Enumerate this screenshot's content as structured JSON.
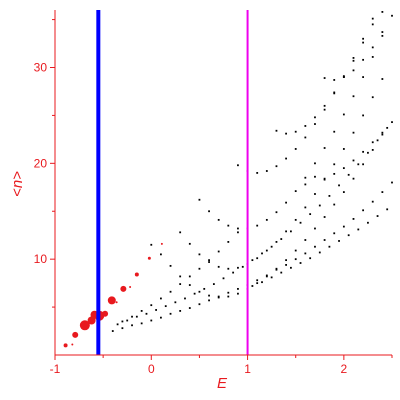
{
  "chart_data": {
    "type": "scatter",
    "title": "",
    "xlabel": "E",
    "ylabel": "<n>",
    "xlim": [
      -1.0,
      2.5
    ],
    "ylim": [
      0.0,
      36.0
    ],
    "x_ticks": [
      -1,
      0,
      1,
      2
    ],
    "y_ticks": [
      10,
      20,
      30
    ],
    "grid": false,
    "colors": {
      "axes": "#e8191e",
      "red_points": "#e8191e",
      "black_points": "#000000",
      "blue_line": "#0000ff",
      "magenta_line": "#ee00ee"
    },
    "vertical_lines": [
      {
        "x": -0.55,
        "color": "#0000ff"
      },
      {
        "x": 1.0,
        "color": "#ee00ee"
      }
    ],
    "red_series": {
      "points": [
        {
          "x": -0.89,
          "y": 1.0,
          "size": 2
        },
        {
          "x": -0.79,
          "y": 2.1,
          "size": 3
        },
        {
          "x": -0.69,
          "y": 3.1,
          "size": 5
        },
        {
          "x": -0.62,
          "y": 3.6,
          "size": 4
        },
        {
          "x": -0.59,
          "y": 4.2,
          "size": 4
        },
        {
          "x": -0.54,
          "y": 4.1,
          "size": 5
        },
        {
          "x": -0.48,
          "y": 4.3,
          "size": 3
        },
        {
          "x": -0.41,
          "y": 5.7,
          "size": 4
        },
        {
          "x": -0.29,
          "y": 6.9,
          "size": 3
        },
        {
          "x": -0.15,
          "y": 8.4,
          "size": 2
        },
        {
          "x": -0.02,
          "y": 10.1,
          "size": 1.5
        },
        {
          "x": 0.11,
          "y": 11.6,
          "size": 1
        },
        {
          "x": -0.82,
          "y": 1.1,
          "size": 1
        },
        {
          "x": -0.36,
          "y": 5.5,
          "size": 1
        },
        {
          "x": -0.22,
          "y": 7.1,
          "size": 1
        }
      ]
    },
    "black_series": {
      "points": [
        [
          -0.4,
          2.5
        ],
        [
          -0.3,
          2.8
        ],
        [
          -0.2,
          3.1
        ],
        [
          -0.1,
          3.3
        ],
        [
          0.0,
          3.6
        ],
        [
          0.1,
          3.9
        ],
        [
          0.2,
          4.3
        ],
        [
          0.3,
          4.6
        ],
        [
          0.4,
          4.9
        ],
        [
          0.5,
          5.3
        ],
        [
          0.6,
          5.7
        ],
        [
          0.7,
          6.1
        ],
        [
          0.8,
          6.5
        ],
        [
          0.9,
          6.9
        ],
        [
          1.0,
          7.3
        ],
        [
          1.1,
          7.8
        ],
        [
          1.2,
          8.3
        ],
        [
          1.3,
          8.9
        ],
        [
          1.4,
          9.4
        ],
        [
          1.5,
          10.0
        ],
        [
          1.6,
          10.6
        ],
        [
          1.7,
          11.3
        ],
        [
          1.8,
          12.0
        ],
        [
          1.9,
          12.7
        ],
        [
          2.0,
          13.4
        ],
        [
          2.1,
          14.2
        ],
        [
          2.2,
          15.1
        ],
        [
          2.3,
          16.0
        ],
        [
          2.4,
          17.0
        ],
        [
          2.5,
          18.0
        ],
        [
          -0.35,
          3.2
        ],
        [
          -0.25,
          3.6
        ],
        [
          -0.15,
          4.0
        ],
        [
          -0.05,
          4.3
        ],
        [
          0.05,
          4.7
        ],
        [
          0.15,
          5.1
        ],
        [
          0.25,
          5.5
        ],
        [
          0.35,
          5.9
        ],
        [
          0.45,
          6.4
        ],
        [
          0.55,
          6.9
        ],
        [
          0.65,
          7.4
        ],
        [
          0.75,
          8.0
        ],
        [
          0.85,
          8.6
        ],
        [
          0.95,
          9.2
        ],
        [
          1.05,
          9.9
        ],
        [
          1.15,
          10.6
        ],
        [
          1.25,
          11.3
        ],
        [
          1.35,
          12.1
        ],
        [
          1.45,
          12.9
        ],
        [
          1.55,
          13.8
        ],
        [
          1.65,
          14.7
        ],
        [
          1.75,
          15.6
        ],
        [
          1.85,
          16.6
        ],
        [
          1.95,
          17.7
        ],
        [
          2.05,
          18.8
        ],
        [
          2.15,
          19.9
        ],
        [
          2.25,
          21.1
        ],
        [
          2.35,
          22.4
        ],
        [
          2.45,
          23.7
        ],
        [
          0.0,
          11.5
        ],
        [
          0.1,
          10.5
        ],
        [
          0.2,
          9.3
        ],
        [
          0.3,
          8.2
        ],
        [
          0.4,
          7.3
        ],
        [
          0.5,
          6.6
        ],
        [
          0.6,
          6.2
        ],
        [
          0.7,
          6.0
        ],
        [
          0.8,
          6.1
        ],
        [
          0.9,
          6.4
        ],
        [
          1.0,
          6.9
        ],
        [
          1.1,
          7.5
        ],
        [
          1.2,
          8.2
        ],
        [
          1.3,
          9.0
        ],
        [
          1.4,
          9.9
        ],
        [
          1.5,
          10.9
        ],
        [
          1.6,
          12.0
        ],
        [
          1.7,
          13.2
        ],
        [
          1.8,
          14.4
        ],
        [
          1.9,
          15.7
        ],
        [
          2.0,
          17.0
        ],
        [
          2.1,
          18.4
        ],
        [
          2.2,
          19.9
        ],
        [
          2.3,
          21.4
        ],
        [
          2.4,
          23.0
        ],
        [
          0.3,
          12.8
        ],
        [
          0.4,
          11.6
        ],
        [
          0.5,
          10.5
        ],
        [
          0.6,
          9.7
        ],
        [
          0.7,
          9.2
        ],
        [
          0.8,
          9.0
        ],
        [
          0.9,
          9.1
        ],
        [
          1.0,
          9.5
        ],
        [
          1.1,
          10.1
        ],
        [
          1.2,
          10.9
        ],
        [
          1.3,
          11.8
        ],
        [
          1.4,
          12.9
        ],
        [
          1.5,
          14.1
        ],
        [
          1.6,
          15.4
        ],
        [
          1.7,
          16.8
        ],
        [
          1.8,
          18.3
        ],
        [
          1.9,
          19.9
        ],
        [
          2.0,
          21.5
        ],
        [
          2.1,
          23.2
        ],
        [
          2.2,
          25.0
        ],
        [
          2.3,
          26.9
        ],
        [
          2.4,
          28.8
        ],
        [
          0.5,
          16.2
        ],
        [
          0.6,
          15.0
        ],
        [
          0.7,
          14.1
        ],
        [
          0.8,
          13.5
        ],
        [
          0.9,
          13.2
        ],
        [
          1.0,
          13.2
        ],
        [
          1.1,
          13.5
        ],
        [
          1.2,
          14.1
        ],
        [
          1.3,
          14.9
        ],
        [
          1.4,
          15.9
        ],
        [
          1.5,
          17.1
        ],
        [
          1.6,
          18.5
        ],
        [
          1.7,
          20.0
        ],
        [
          1.8,
          21.6
        ],
        [
          1.9,
          23.3
        ],
        [
          2.0,
          25.1
        ],
        [
          2.1,
          27.0
        ],
        [
          2.2,
          29.0
        ],
        [
          2.3,
          31.1
        ],
        [
          2.4,
          33.3
        ],
        [
          0.9,
          19.8
        ],
        [
          1.0,
          19.2
        ],
        [
          1.1,
          19.0
        ],
        [
          1.2,
          19.2
        ],
        [
          1.3,
          19.7
        ],
        [
          1.4,
          20.5
        ],
        [
          1.5,
          21.5
        ],
        [
          1.6,
          22.7
        ],
        [
          1.7,
          24.1
        ],
        [
          1.8,
          25.6
        ],
        [
          1.9,
          27.3
        ],
        [
          2.0,
          29.1
        ],
        [
          2.1,
          31.0
        ],
        [
          2.2,
          33.0
        ],
        [
          2.3,
          35.1
        ],
        [
          1.3,
          23.4
        ],
        [
          1.4,
          23.1
        ],
        [
          1.5,
          23.3
        ],
        [
          1.6,
          23.9
        ],
        [
          1.7,
          24.8
        ],
        [
          1.8,
          26.0
        ],
        [
          1.9,
          27.4
        ],
        [
          2.0,
          29.0
        ],
        [
          2.1,
          30.7
        ],
        [
          2.2,
          32.6
        ],
        [
          2.3,
          34.5
        ],
        [
          2.4,
          35.8
        ],
        [
          1.8,
          28.9
        ],
        [
          1.9,
          28.7
        ],
        [
          2.0,
          29.0
        ],
        [
          2.1,
          29.7
        ],
        [
          2.2,
          30.8
        ],
        [
          2.3,
          32.1
        ],
        [
          2.4,
          33.7
        ],
        [
          2.5,
          35.4
        ],
        [
          -0.3,
          3.5
        ],
        [
          -0.2,
          4.0
        ],
        [
          -0.1,
          4.6
        ],
        [
          0.0,
          5.2
        ],
        [
          0.1,
          5.9
        ],
        [
          0.2,
          6.6
        ],
        [
          0.3,
          7.4
        ],
        [
          0.4,
          8.2
        ],
        [
          0.5,
          9.0
        ],
        [
          0.6,
          9.9
        ],
        [
          0.7,
          10.8
        ],
        [
          0.8,
          11.8
        ],
        [
          0.9,
          12.8
        ],
        [
          1.05,
          7.2
        ],
        [
          1.15,
          7.6
        ],
        [
          1.25,
          8.1
        ],
        [
          1.35,
          8.6
        ],
        [
          1.45,
          9.1
        ],
        [
          1.55,
          9.6
        ],
        [
          1.65,
          10.1
        ],
        [
          1.75,
          10.7
        ],
        [
          1.85,
          11.3
        ],
        [
          1.95,
          11.9
        ],
        [
          2.05,
          12.5
        ],
        [
          2.15,
          13.1
        ],
        [
          2.25,
          13.8
        ],
        [
          2.35,
          14.5
        ],
        [
          2.45,
          15.2
        ],
        [
          1.6,
          17.8
        ],
        [
          1.7,
          18.6
        ],
        [
          1.8,
          18.4
        ],
        [
          1.9,
          18.9
        ],
        [
          2.0,
          19.5
        ],
        [
          2.1,
          20.3
        ],
        [
          2.2,
          21.2
        ],
        [
          2.3,
          22.2
        ],
        [
          2.4,
          23.2
        ],
        [
          2.5,
          24.3
        ]
      ]
    }
  }
}
